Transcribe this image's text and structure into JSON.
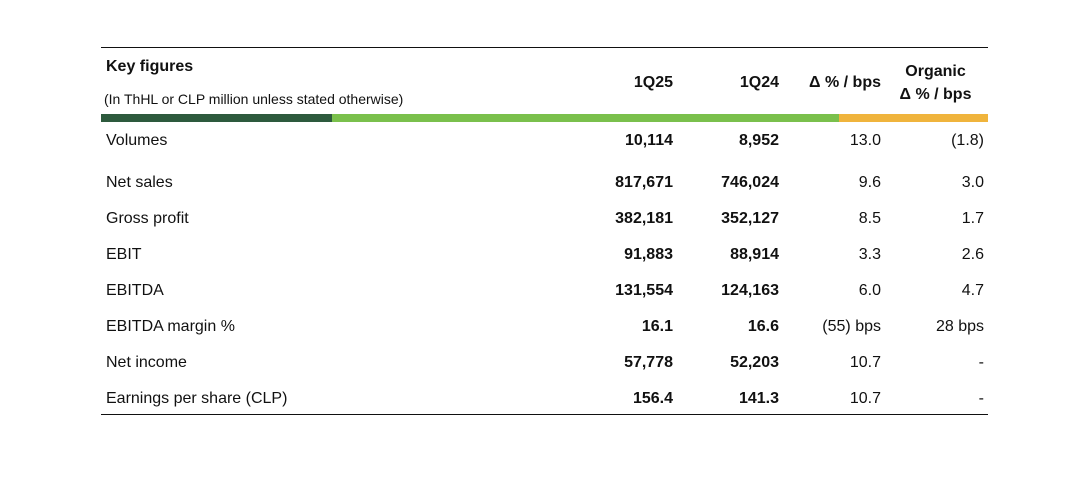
{
  "table": {
    "title": "Key figures",
    "subtitle": "(In ThHL or CLP million unless stated otherwise)",
    "columns": {
      "c1": "1Q25",
      "c2": "1Q24",
      "c3": "Δ % / bps",
      "c4_line1": "Organic",
      "c4_line2": "Δ % / bps"
    },
    "bar_colors": {
      "dark": "#2d5a3d",
      "green": "#7ac04c",
      "orange": "#f0b43c"
    },
    "rows": [
      {
        "label": "Volumes",
        "q125": "10,114",
        "q124": "8,952",
        "delta": "13.0",
        "organic": "(1.8)"
      },
      {
        "label": "Net sales",
        "q125": "817,671",
        "q124": "746,024",
        "delta": "9.6",
        "organic": "3.0"
      },
      {
        "label": "Gross profit",
        "q125": "382,181",
        "q124": "352,127",
        "delta": "8.5",
        "organic": "1.7"
      },
      {
        "label": "EBIT",
        "q125": "91,883",
        "q124": "88,914",
        "delta": "3.3",
        "organic": "2.6"
      },
      {
        "label": "EBITDA",
        "q125": "131,554",
        "q124": "124,163",
        "delta": "6.0",
        "organic": "4.7"
      },
      {
        "label": "EBITDA margin %",
        "q125": "16.1",
        "q124": "16.6",
        "delta": "(55) bps",
        "organic": "28 bps"
      },
      {
        "label": "Net income",
        "q125": "57,778",
        "q124": "52,203",
        "delta": "10.7",
        "organic": "-"
      },
      {
        "label": "Earnings per share (CLP)",
        "q125": "156.4",
        "q124": "141.3",
        "delta": "10.7",
        "organic": "-"
      }
    ]
  }
}
